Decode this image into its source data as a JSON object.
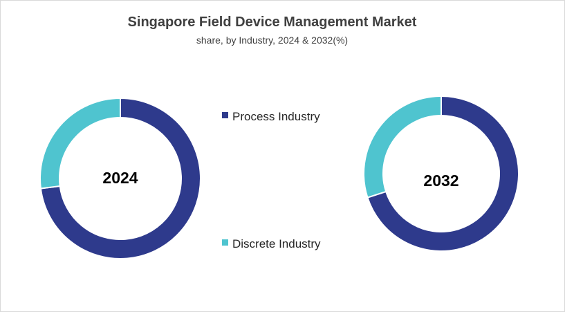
{
  "title": "Singapore Field Device Management Market",
  "subtitle": "share, by Industry, 2024 & 2032(%)",
  "chart_data": {
    "type": "donut",
    "title": "Singapore Field Device Management Market",
    "subtitle": "share, by Industry, 2024 & 2032(%)",
    "legend": [
      {
        "name": "Process Industry",
        "color": "#2e3a8c"
      },
      {
        "name": "Discrete Industry",
        "color": "#4fc4cf"
      }
    ],
    "charts": [
      {
        "label": "2024",
        "slices": [
          {
            "name": "Process Industry",
            "value": 73,
            "color": "#2e3a8c"
          },
          {
            "name": "Discrete Industry",
            "value": 27,
            "color": "#4fc4cf"
          }
        ]
      },
      {
        "label": "2032",
        "slices": [
          {
            "name": "Process Industry",
            "value": 70,
            "color": "#2e3a8c"
          },
          {
            "name": "Discrete Industry",
            "value": 30,
            "color": "#4fc4cf"
          }
        ]
      }
    ],
    "legend_position": "center"
  }
}
